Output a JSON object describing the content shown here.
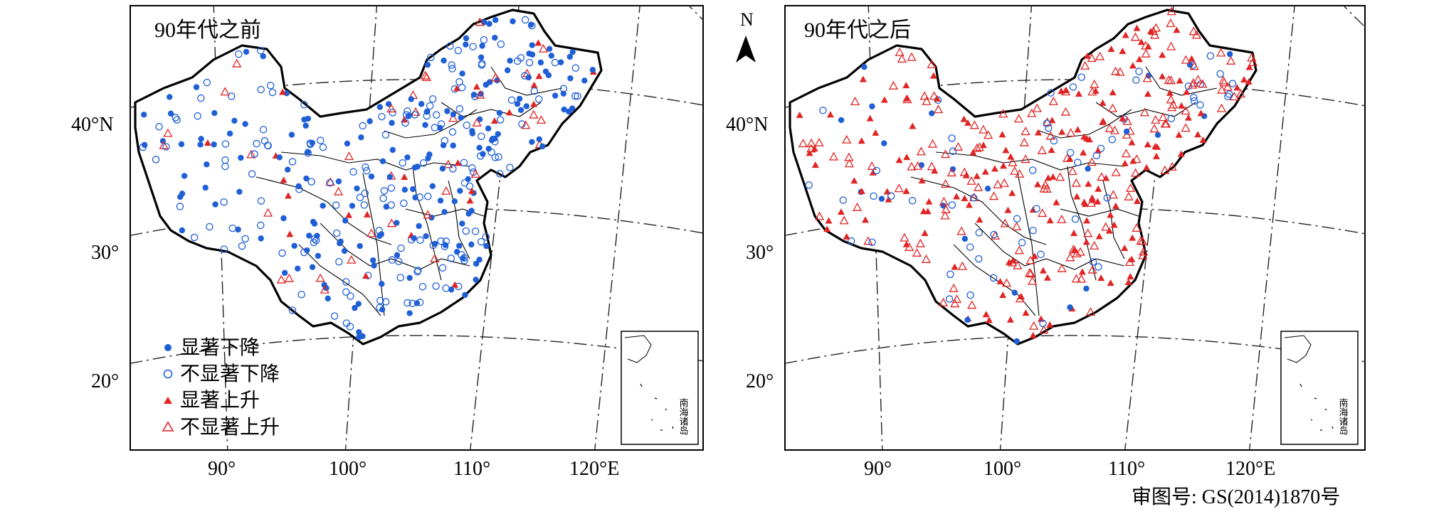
{
  "panels": [
    {
      "title": "90年代之前",
      "lat_labels": [
        "40°N",
        "30°",
        "20°"
      ],
      "lon_labels": [
        "90°",
        "100°",
        "110°",
        "120°E"
      ],
      "legend": [
        {
          "label": "显著下降",
          "symbol": "filled-circle",
          "color": "#1f5fd6"
        },
        {
          "label": "不显著下降",
          "symbol": "open-circle",
          "color": "#1f5fd6"
        },
        {
          "label": "显著上升",
          "symbol": "filled-triangle",
          "color": "#e02424"
        },
        {
          "label": "不显著上升",
          "symbol": "open-triangle",
          "color": "#e02424"
        }
      ],
      "station_mix": {
        "sig_down": 0.42,
        "nonsig_down": 0.38,
        "sig_up": 0.06,
        "nonsig_up": 0.14
      },
      "inset_label": "南海诸岛"
    },
    {
      "title": "90年代之后",
      "north_arrow": "N",
      "lat_labels": [
        "40°N",
        "30°",
        "20°"
      ],
      "lon_labels": [
        "90°",
        "100°",
        "110°",
        "120°E"
      ],
      "station_mix": {
        "sig_down": 0.06,
        "nonsig_down": 0.16,
        "sig_up": 0.36,
        "nonsig_up": 0.42
      },
      "inset_label": "南海诸岛"
    }
  ],
  "footer": {
    "approval": "审图号: GS(2014)1870号"
  },
  "colors": {
    "blue": "#1f5fd6",
    "red": "#e02424",
    "border": "#000000",
    "grid": "#222222"
  }
}
